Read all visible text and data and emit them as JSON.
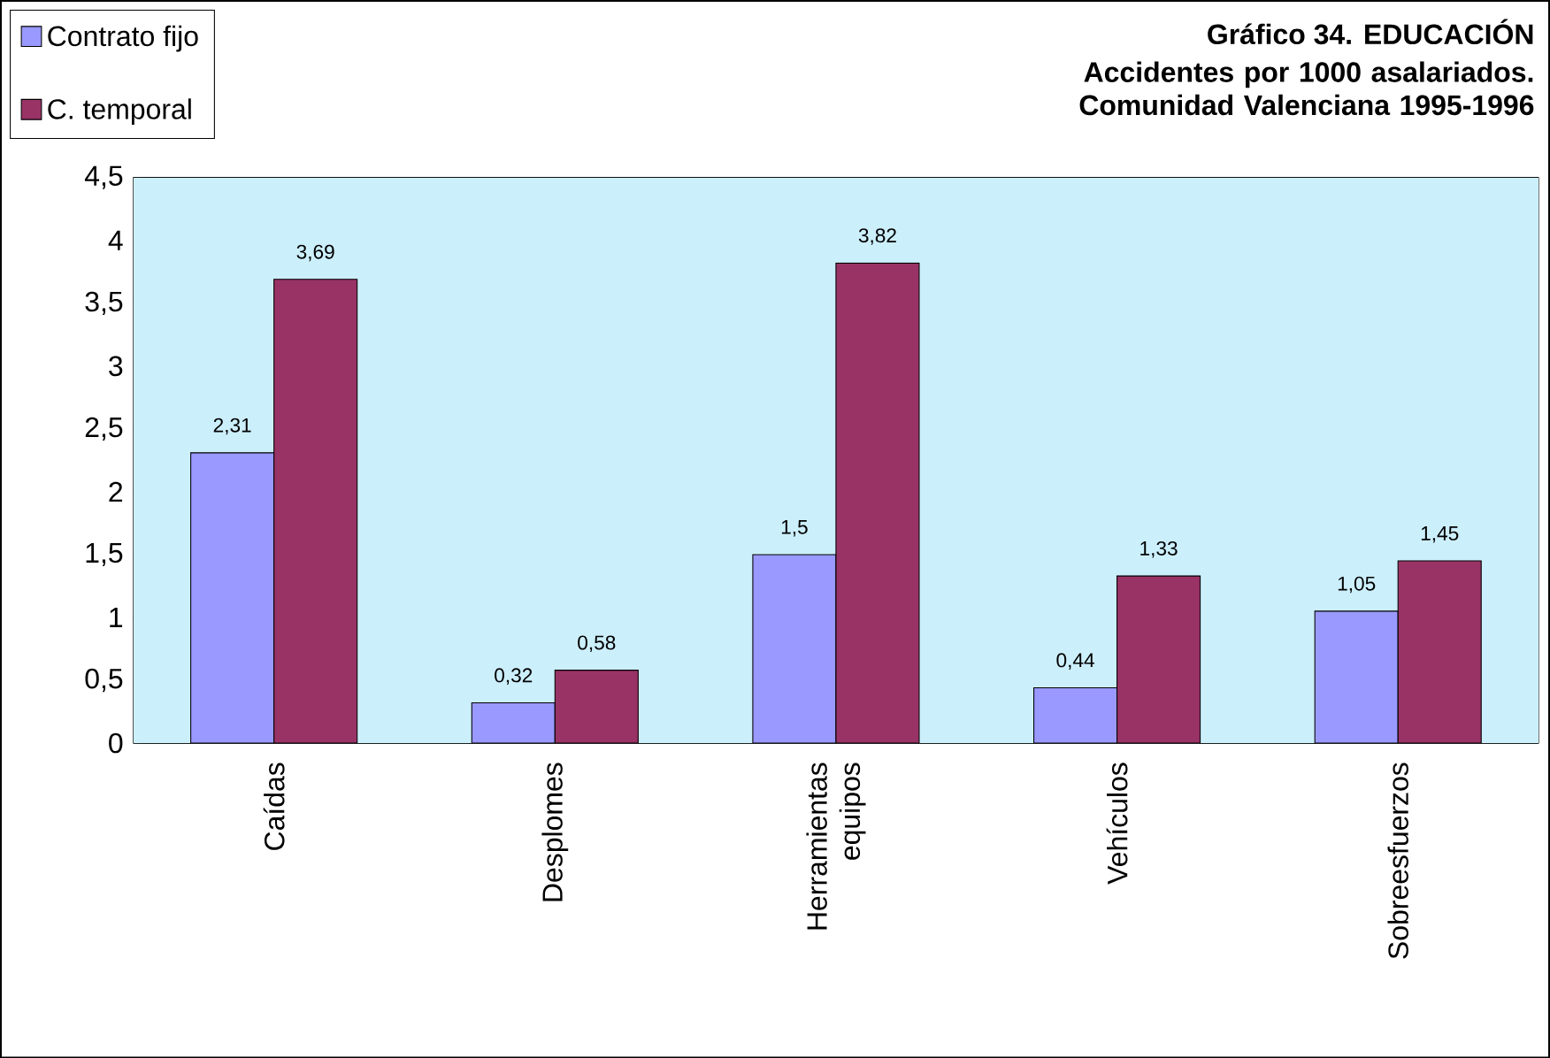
{
  "chart_data": {
    "type": "bar",
    "title": "Gráfico 34. EDUCACIÓN",
    "subtitle": "Accidentes por 1000 asalariados. Comunidad Valenciana 1995-1996",
    "categories": [
      "Caídas",
      "Desplomes",
      "Herramientas equipos",
      "Vehículos",
      "Sobreesfuerzos"
    ],
    "series": [
      {
        "name": "Contrato fijo",
        "color": "#9999ff",
        "values": [
          2.31,
          0.32,
          1.5,
          0.44,
          1.05
        ],
        "value_labels": [
          "2,31",
          "0,32",
          "1,5",
          "0,44",
          "1,05"
        ]
      },
      {
        "name": "C. temporal",
        "color": "#993366",
        "values": [
          3.69,
          0.58,
          3.82,
          1.33,
          1.45
        ],
        "value_labels": [
          "3,69",
          "0,58",
          "3,82",
          "1,33",
          "1,45"
        ]
      }
    ],
    "ylim": [
      0,
      4.5
    ],
    "yticks": [
      0,
      {
        "value": 0.5,
        "label": "0,5"
      },
      1,
      {
        "value": 1.5,
        "label": "1,5"
      },
      2,
      {
        "value": 2.5,
        "label": "2,5"
      },
      3,
      {
        "value": 3.5,
        "label": "3,5"
      },
      4,
      {
        "value": 4.5,
        "label": "4,5"
      }
    ],
    "grid": "y",
    "legend": "top left"
  }
}
